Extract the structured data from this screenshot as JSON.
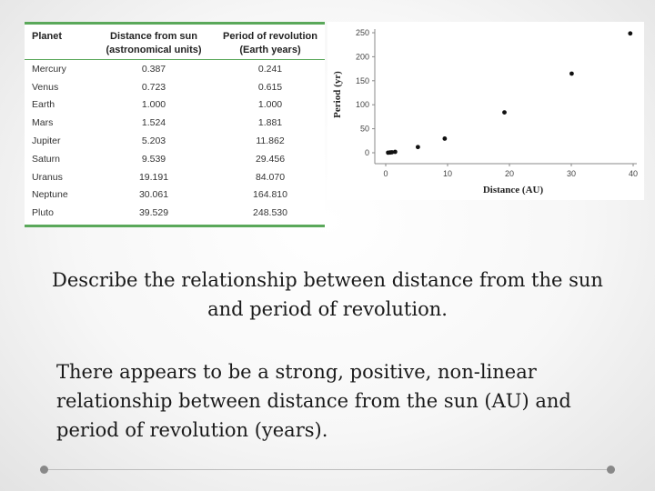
{
  "table": {
    "headers": {
      "planet": "Planet",
      "distance_line1": "Distance from sun",
      "distance_line2": "(astronomical units)",
      "period_line1": "Period of revolution",
      "period_line2": "(Earth years)"
    },
    "rows": [
      {
        "planet": "Mercury",
        "distance": "0.387",
        "period": "0.241"
      },
      {
        "planet": "Venus",
        "distance": "0.723",
        "period": "0.615"
      },
      {
        "planet": "Earth",
        "distance": "1.000",
        "period": "1.000"
      },
      {
        "planet": "Mars",
        "distance": "1.524",
        "period": "1.881"
      },
      {
        "planet": "Jupiter",
        "distance": "5.203",
        "period": "11.862"
      },
      {
        "planet": "Saturn",
        "distance": "9.539",
        "period": "29.456"
      },
      {
        "planet": "Uranus",
        "distance": "19.191",
        "period": "84.070"
      },
      {
        "planet": "Neptune",
        "distance": "30.061",
        "period": "164.810"
      },
      {
        "planet": "Pluto",
        "distance": "39.529",
        "period": "248.530"
      }
    ]
  },
  "chart_data": {
    "type": "scatter",
    "title": "",
    "xlabel": "Distance (AU)",
    "ylabel": "Period (yr)",
    "xlim": [
      0,
      40
    ],
    "ylim": [
      0,
      250
    ],
    "xticks": [
      0,
      10,
      20,
      30,
      40
    ],
    "yticks": [
      0,
      50,
      100,
      150,
      200,
      250
    ],
    "grid": false,
    "x": [
      0.387,
      0.723,
      1.0,
      1.524,
      5.203,
      9.539,
      19.191,
      30.061,
      39.529
    ],
    "y": [
      0.241,
      0.615,
      1.0,
      1.881,
      11.862,
      29.456,
      84.07,
      164.81,
      248.53
    ],
    "point_color": "#111111"
  },
  "text": {
    "question": "Describe the relationship between distance from the sun and period of revolution.",
    "answer": "There appears to be a strong, positive, non-linear relationship between distance from the sun (AU) and period of revolution (years)."
  },
  "colors": {
    "table_rule": "#5aa85a"
  }
}
